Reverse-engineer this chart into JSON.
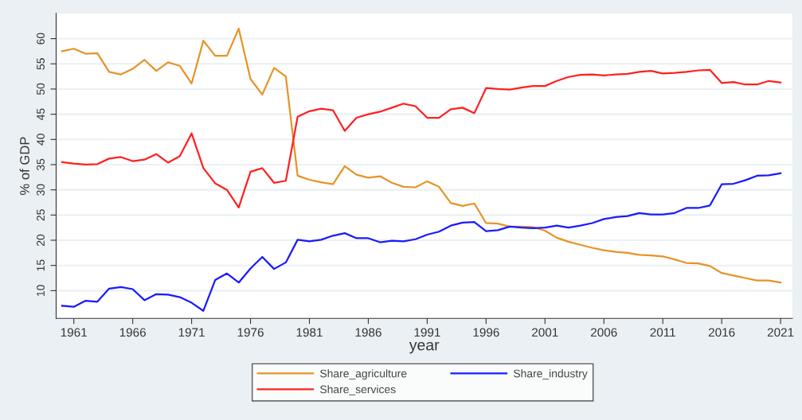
{
  "chart_data": {
    "type": "line",
    "xlabel": "year",
    "ylabel": "% of GDP",
    "x": [
      1960,
      1961,
      1962,
      1963,
      1964,
      1965,
      1966,
      1967,
      1968,
      1969,
      1970,
      1971,
      1972,
      1973,
      1974,
      1975,
      1976,
      1977,
      1978,
      1979,
      1980,
      1981,
      1982,
      1983,
      1984,
      1985,
      1986,
      1987,
      1988,
      1989,
      1990,
      1991,
      1992,
      1993,
      1994,
      1995,
      1996,
      1997,
      1998,
      1999,
      2000,
      2001,
      2002,
      2003,
      2004,
      2005,
      2006,
      2007,
      2008,
      2009,
      2010,
      2011,
      2012,
      2013,
      2014,
      2015,
      2016,
      2017,
      2018,
      2019,
      2020,
      2021
    ],
    "series": [
      {
        "name": "Share_agriculture",
        "color": "#e69327",
        "values": [
          57.5,
          58,
          57,
          57.1,
          53.4,
          52.9,
          54,
          55.8,
          53.6,
          55.3,
          54.6,
          51.1,
          59.6,
          56.6,
          56.6,
          62,
          52,
          48.9,
          54.2,
          52.5,
          32.8,
          32,
          31.5,
          31.1,
          34.7,
          33,
          32.4,
          32.7,
          31.4,
          30.6,
          30.5,
          31.7,
          30.6,
          27.4,
          26.8,
          27.3,
          23.4,
          23.3,
          22.7,
          22.7,
          22.6,
          21.9,
          20.5,
          19.7,
          19.1,
          18.5,
          18,
          17.7,
          17.5,
          17.1,
          17,
          16.8,
          16.2,
          15.5,
          15.4,
          14.9,
          13.5,
          13,
          12.5,
          12,
          12,
          11.6
        ]
      },
      {
        "name": "Share_industry",
        "color": "#1a1aff",
        "values": [
          7,
          6.8,
          8,
          7.8,
          10.4,
          10.7,
          10.3,
          8.1,
          9.3,
          9.2,
          8.7,
          7.6,
          6,
          12.1,
          13.4,
          11.6,
          14.4,
          16.7,
          14.3,
          15.6,
          20.1,
          19.8,
          20.1,
          20.9,
          21.4,
          20.4,
          20.4,
          19.6,
          19.9,
          19.8,
          20.2,
          21.1,
          21.7,
          22.9,
          23.5,
          23.6,
          21.8,
          22,
          22.7,
          22.5,
          22.4,
          22.5,
          22.9,
          22.5,
          22.9,
          23.4,
          24.2,
          24.6,
          24.8,
          25.4,
          25.1,
          25.1,
          25.4,
          26.4,
          26.4,
          26.9,
          31.1,
          31.2,
          31.9,
          32.8,
          32.9,
          33.3
        ]
      },
      {
        "name": "Share_services",
        "color": "#ff2020",
        "values": [
          35.5,
          35.2,
          35,
          35.1,
          36.2,
          36.5,
          35.7,
          36,
          37.1,
          35.4,
          36.7,
          41.2,
          34.3,
          31.3,
          30,
          26.5,
          33.6,
          34.3,
          31.4,
          31.8,
          44.5,
          45.6,
          46.1,
          45.8,
          41.7,
          44.3,
          45,
          45.5,
          46.3,
          47.1,
          46.6,
          44.3,
          44.3,
          46,
          46.3,
          45.2,
          50.2,
          50,
          49.9,
          50.3,
          50.6,
          50.6,
          51.6,
          52.4,
          52.8,
          52.9,
          52.7,
          52.9,
          53,
          53.4,
          53.6,
          53.1,
          53.2,
          53.4,
          53.7,
          53.8,
          51.2,
          51.4,
          50.9,
          50.9,
          51.6,
          51.3
        ]
      }
    ],
    "xlim": [
      1959.5,
      2022
    ],
    "xticks": [
      1961,
      1966,
      1971,
      1976,
      1981,
      1986,
      1991,
      1996,
      2001,
      2006,
      2011,
      2016,
      2021
    ],
    "ylim": [
      4.5,
      65
    ],
    "yticks": [
      10,
      15,
      20,
      25,
      30,
      35,
      40,
      45,
      50,
      55,
      60
    ],
    "grid": "y",
    "legend": "bottom",
    "marker": "none",
    "line_style": "solid"
  }
}
